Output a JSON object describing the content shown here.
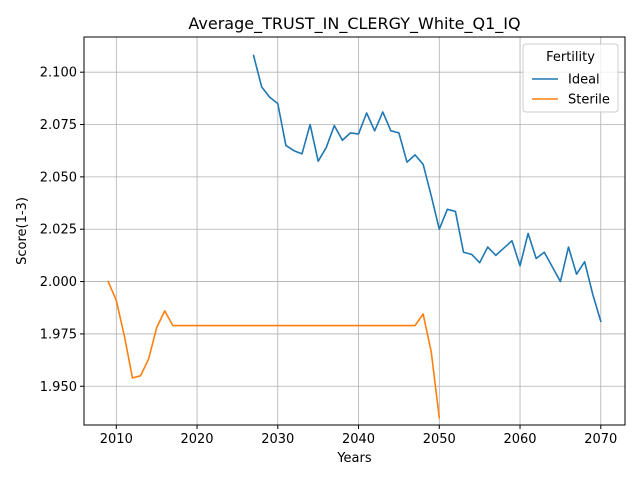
{
  "chart_data": {
    "type": "line",
    "title": "Average_TRUST_IN_CLERGY_White_Q1_IQ",
    "xlabel": "Years",
    "ylabel": "Score(1-3)",
    "xlim": [
      2006,
      2073
    ],
    "ylim": [
      1.9315,
      2.1168
    ],
    "xticks": [
      2010,
      2020,
      2030,
      2040,
      2050,
      2060,
      2070
    ],
    "yticks": [
      1.95,
      1.975,
      2.0,
      2.025,
      2.05,
      2.075,
      2.1
    ],
    "xtick_labels": [
      "2010",
      "2020",
      "2030",
      "2040",
      "2050",
      "2060",
      "2070"
    ],
    "ytick_labels": [
      "1.950",
      "1.975",
      "2.000",
      "2.025",
      "2.050",
      "2.075",
      "2.100"
    ],
    "grid": true,
    "legend": {
      "title": "Fertility",
      "position": "top-right"
    },
    "series": [
      {
        "name": "Ideal",
        "color": "#1f77b4",
        "x": [
          2027,
          2028,
          2029,
          2030,
          2031,
          2032,
          2033,
          2034,
          2035,
          2036,
          2037,
          2038,
          2039,
          2040,
          2041,
          2042,
          2043,
          2044,
          2045,
          2046,
          2047,
          2048,
          2049,
          2050,
          2051,
          2052,
          2053,
          2054,
          2055,
          2056,
          2057,
          2058,
          2059,
          2060,
          2061,
          2062,
          2063,
          2064,
          2065,
          2066,
          2067,
          2068,
          2069,
          2070
        ],
        "y": [
          2.108,
          2.093,
          2.088,
          2.085,
          2.065,
          2.0625,
          2.061,
          2.075,
          2.0575,
          2.064,
          2.0745,
          2.0675,
          2.071,
          2.0705,
          2.0805,
          2.072,
          2.081,
          2.072,
          2.071,
          2.057,
          2.0605,
          2.056,
          2.041,
          2.025,
          2.0345,
          2.0335,
          2.014,
          2.013,
          2.009,
          2.0165,
          2.0125,
          2.016,
          2.0195,
          2.0075,
          2.023,
          2.011,
          2.014,
          2.007,
          2.0,
          2.0165,
          2.0035,
          2.0095,
          1.994,
          1.981
        ]
      },
      {
        "name": "Sterile",
        "color": "#ff7f0e",
        "x": [
          2009,
          2010,
          2011,
          2012,
          2013,
          2014,
          2015,
          2016,
          2017,
          2018,
          2019,
          2020,
          2021,
          2022,
          2023,
          2024,
          2025,
          2026,
          2027,
          2028,
          2029,
          2030,
          2031,
          2032,
          2033,
          2034,
          2035,
          2036,
          2037,
          2038,
          2039,
          2040,
          2041,
          2042,
          2043,
          2044,
          2045,
          2046,
          2047,
          2048,
          2049,
          2050
        ],
        "y": [
          2.0,
          1.991,
          1.974,
          1.954,
          1.955,
          1.963,
          1.978,
          1.986,
          1.979,
          1.979,
          1.979,
          1.979,
          1.979,
          1.979,
          1.979,
          1.979,
          1.979,
          1.979,
          1.979,
          1.979,
          1.979,
          1.979,
          1.979,
          1.979,
          1.979,
          1.979,
          1.979,
          1.979,
          1.979,
          1.979,
          1.979,
          1.979,
          1.979,
          1.979,
          1.979,
          1.979,
          1.979,
          1.979,
          1.979,
          1.9845,
          1.9665,
          1.935
        ]
      }
    ]
  }
}
